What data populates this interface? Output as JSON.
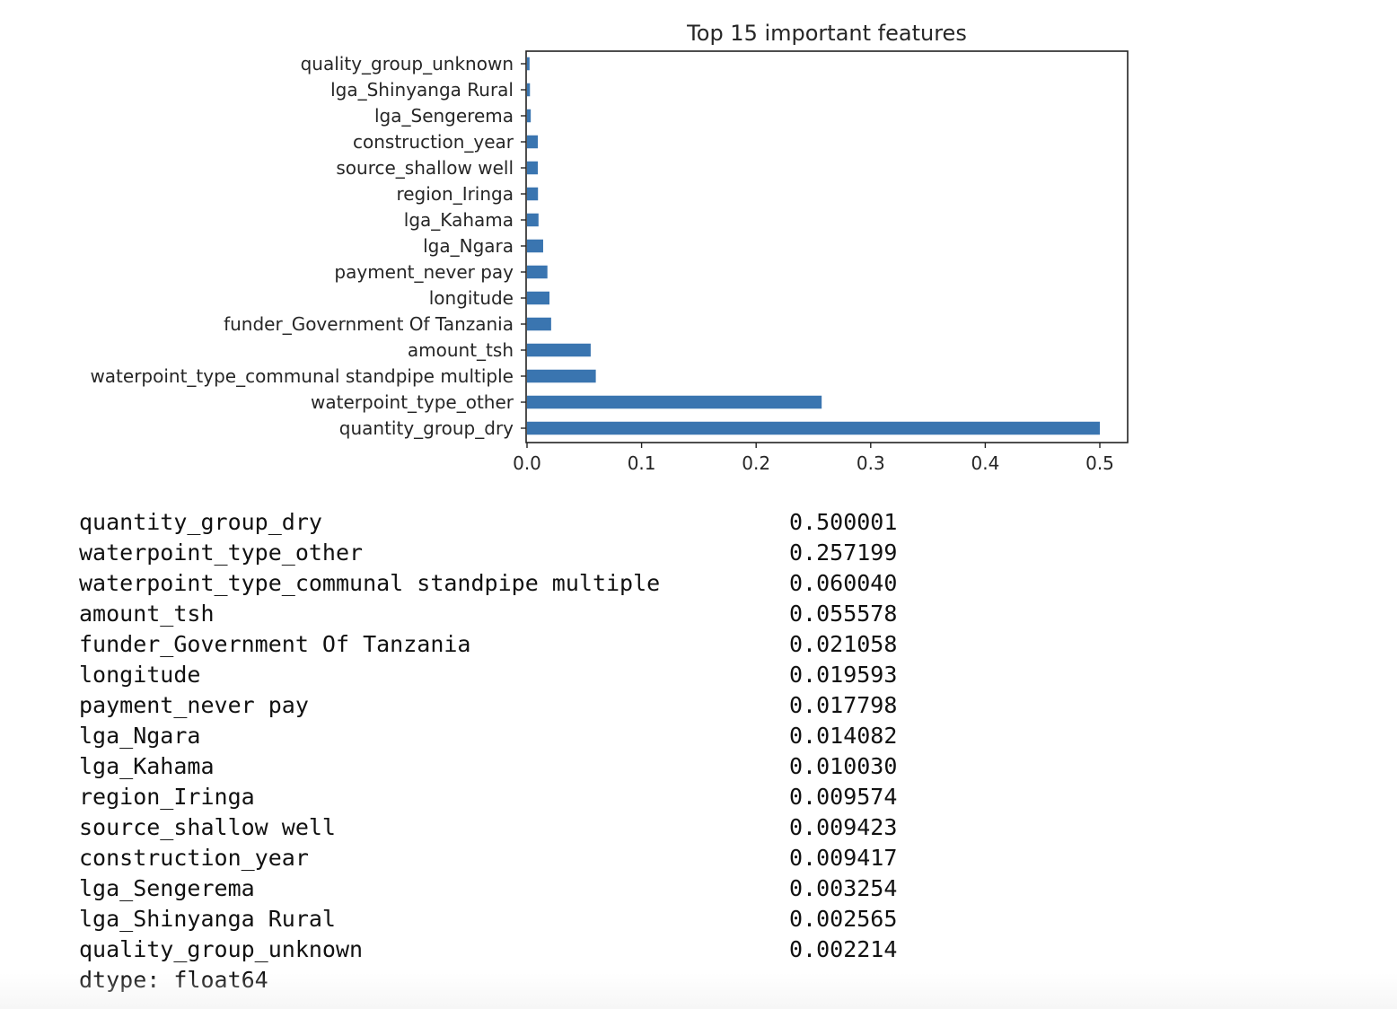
{
  "chart_data": {
    "type": "bar",
    "orientation": "horizontal",
    "title": "Top 15 important features",
    "xlabel": "",
    "ylabel": "",
    "categories": [
      "quantity_group_dry",
      "waterpoint_type_other",
      "waterpoint_type_communal standpipe multiple",
      "amount_tsh",
      "funder_Government Of Tanzania",
      "longitude",
      "payment_never pay",
      "lga_Ngara",
      "lga_Kahama",
      "region_Iringa",
      "source_shallow well",
      "construction_year",
      "lga_Sengerema",
      "lga_Shinyanga Rural",
      "quality_group_unknown"
    ],
    "values": [
      0.500001,
      0.257199,
      0.06004,
      0.055578,
      0.021058,
      0.019593,
      0.017798,
      0.014082,
      0.01003,
      0.009574,
      0.009423,
      0.009417,
      0.003254,
      0.002565,
      0.002214
    ],
    "xticks": [
      "0.0",
      "0.1",
      "0.2",
      "0.3",
      "0.4",
      "0.5"
    ],
    "xlim": [
      0,
      0.525
    ],
    "bar_color": "#3a75b0",
    "grid": false
  },
  "output": {
    "rows": [
      {
        "name": "quantity_group_dry",
        "value": "0.500001"
      },
      {
        "name": "waterpoint_type_other",
        "value": "0.257199"
      },
      {
        "name": "waterpoint_type_communal standpipe multiple",
        "value": "0.060040"
      },
      {
        "name": "amount_tsh",
        "value": "0.055578"
      },
      {
        "name": "funder_Government Of Tanzania",
        "value": "0.021058"
      },
      {
        "name": "longitude",
        "value": "0.019593"
      },
      {
        "name": "payment_never pay",
        "value": "0.017798"
      },
      {
        "name": "lga_Ngara",
        "value": "0.014082"
      },
      {
        "name": "lga_Kahama",
        "value": "0.010030"
      },
      {
        "name": "region_Iringa",
        "value": "0.009574"
      },
      {
        "name": "source_shallow well",
        "value": "0.009423"
      },
      {
        "name": "construction_year",
        "value": "0.009417"
      },
      {
        "name": "lga_Sengerema",
        "value": "0.003254"
      },
      {
        "name": "lga_Shinyanga Rural",
        "value": "0.002565"
      },
      {
        "name": "quality_group_unknown",
        "value": "0.002214"
      }
    ],
    "dtype_line": "dtype: float64"
  }
}
